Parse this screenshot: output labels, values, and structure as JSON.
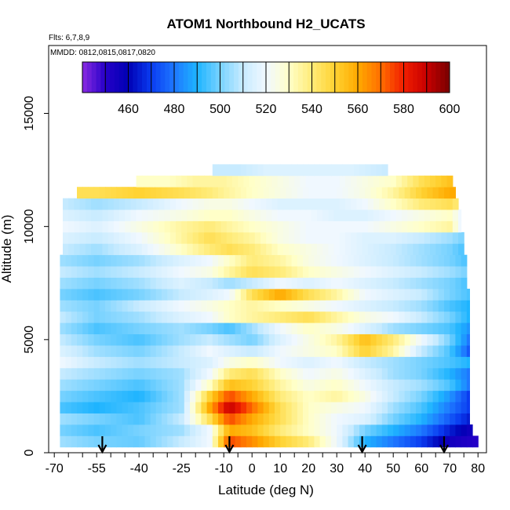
{
  "chart_data": {
    "type": "heatmap",
    "title": "ATOM1 Northbound H2_UCATS",
    "annotations": [
      "Flts: 6,7,8,9",
      "MMDD: 0812,0815,0817,0820"
    ],
    "xlabel": "Latitude (deg N)",
    "ylabel": "Altitude (m)",
    "xlim": [
      -72,
      83
    ],
    "ylim": [
      0,
      18000
    ],
    "x_ticks": [
      -70,
      -55,
      -40,
      -25,
      -10,
      0,
      10,
      20,
      30,
      40,
      50,
      60,
      70,
      80
    ],
    "y_ticks": [
      0,
      5000,
      10000,
      15000
    ],
    "colorbar": {
      "range": [
        440,
        600
      ],
      "ticks": [
        460,
        480,
        500,
        520,
        540,
        560,
        580,
        600
      ],
      "stops": [
        {
          "v": 440,
          "c": "#8a2be2"
        },
        {
          "v": 450,
          "c": "#2600c8"
        },
        {
          "v": 460,
          "c": "#0000b4"
        },
        {
          "v": 470,
          "c": "#0a3cf0"
        },
        {
          "v": 480,
          "c": "#1e78ff"
        },
        {
          "v": 490,
          "c": "#1eb4ff"
        },
        {
          "v": 500,
          "c": "#78d2ff"
        },
        {
          "v": 510,
          "c": "#c8ebff"
        },
        {
          "v": 520,
          "c": "#f0f8ff"
        },
        {
          "v": 530,
          "c": "#ffffc8"
        },
        {
          "v": 540,
          "c": "#ffeb78"
        },
        {
          "v": 550,
          "c": "#ffd232"
        },
        {
          "v": 560,
          "c": "#ffaa00"
        },
        {
          "v": 570,
          "c": "#ff6e00"
        },
        {
          "v": 580,
          "c": "#f01e00"
        },
        {
          "v": 590,
          "c": "#c80000"
        },
        {
          "v": 600,
          "c": "#780000"
        }
      ]
    },
    "profile_markers_lat": [
      -53,
      -8,
      39,
      68
    ],
    "bands": [
      {
        "alt": 500,
        "lat_min": -68,
        "lat_max": 80,
        "lats": [
          -68,
          -55,
          -40,
          -25,
          -15,
          -8,
          0,
          10,
          20,
          30,
          40,
          50,
          60,
          70,
          80
        ],
        "values": [
          505,
          500,
          498,
          510,
          520,
          575,
          565,
          550,
          540,
          520,
          490,
          480,
          470,
          455,
          450
        ]
      },
      {
        "alt": 1000,
        "lat_min": -68,
        "lat_max": 78,
        "lats": [
          -68,
          -55,
          -40,
          -25,
          -15,
          -8,
          0,
          10,
          20,
          30,
          40,
          50,
          60,
          70,
          78
        ],
        "values": [
          500,
          495,
          500,
          505,
          520,
          560,
          555,
          540,
          530,
          520,
          500,
          490,
          480,
          465,
          455
        ]
      },
      {
        "alt": 1500,
        "lat_min": -68,
        "lat_max": 77,
        "lats": [
          -68,
          -55,
          -40,
          -25,
          -15,
          -8,
          0,
          10,
          20,
          30,
          40,
          50,
          60,
          70,
          77
        ],
        "values": [
          505,
          500,
          495,
          510,
          545,
          575,
          560,
          545,
          530,
          520,
          515,
          500,
          490,
          475,
          465
        ]
      },
      {
        "alt": 2000,
        "lat_min": -68,
        "lat_max": 77,
        "lats": [
          -68,
          -55,
          -40,
          -25,
          -15,
          -8,
          0,
          10,
          20,
          30,
          40,
          50,
          60,
          70,
          77
        ],
        "values": [
          495,
          490,
          495,
          505,
          560,
          590,
          570,
          545,
          530,
          525,
          520,
          505,
          495,
          480,
          470
        ]
      },
      {
        "alt": 2500,
        "lat_min": -68,
        "lat_max": 77,
        "lats": [
          -68,
          -55,
          -40,
          -25,
          -15,
          -8,
          0,
          10,
          20,
          30,
          40,
          50,
          60,
          70,
          77
        ],
        "values": [
          500,
          495,
          490,
          505,
          550,
          575,
          560,
          540,
          530,
          535,
          525,
          510,
          500,
          485,
          470
        ]
      },
      {
        "alt": 3000,
        "lat_min": -68,
        "lat_max": 77,
        "lats": [
          -68,
          -55,
          -40,
          -25,
          -15,
          -8,
          0,
          10,
          20,
          30,
          40,
          50,
          60,
          70,
          77
        ],
        "values": [
          505,
          500,
          495,
          505,
          530,
          555,
          550,
          535,
          525,
          530,
          520,
          510,
          505,
          495,
          480
        ]
      },
      {
        "alt": 3500,
        "lat_min": -68,
        "lat_max": 77,
        "lats": [
          -68,
          -55,
          -40,
          -25,
          -15,
          -8,
          0,
          10,
          20,
          30,
          40,
          50,
          60,
          70,
          77
        ],
        "values": [
          510,
          505,
          500,
          505,
          520,
          540,
          545,
          530,
          520,
          525,
          515,
          505,
          500,
          490,
          480
        ]
      },
      {
        "alt": 4000,
        "lat_min": -68,
        "lat_max": 77,
        "lats": [
          -68,
          -55,
          -40,
          -25,
          -15,
          -8,
          0,
          10,
          20,
          30,
          40,
          50,
          60,
          70,
          77
        ],
        "values": [
          520,
          510,
          505,
          510,
          515,
          525,
          530,
          520,
          515,
          520,
          510,
          505,
          500,
          495,
          490
        ]
      },
      {
        "alt": 4500,
        "lat_min": -68,
        "lat_max": 77,
        "lats": [
          -68,
          -55,
          -40,
          -25,
          -15,
          -8,
          0,
          10,
          20,
          30,
          40,
          50,
          60,
          70,
          77
        ],
        "values": [
          515,
          505,
          500,
          510,
          520,
          515,
          510,
          520,
          525,
          530,
          550,
          535,
          510,
          495,
          475
        ]
      },
      {
        "alt": 5000,
        "lat_min": -68,
        "lat_max": 77,
        "lats": [
          -68,
          -55,
          -40,
          -25,
          -15,
          -8,
          0,
          10,
          20,
          30,
          40,
          50,
          60,
          70,
          77
        ],
        "values": [
          510,
          500,
          495,
          505,
          510,
          505,
          500,
          515,
          525,
          535,
          555,
          540,
          520,
          500,
          480
        ]
      },
      {
        "alt": 5500,
        "lat_min": -68,
        "lat_max": 77,
        "lats": [
          -68,
          -55,
          -40,
          -25,
          -15,
          -8,
          0,
          10,
          20,
          30,
          40,
          50,
          60,
          70,
          77
        ],
        "values": [
          505,
          495,
          500,
          505,
          500,
          495,
          505,
          520,
          530,
          525,
          515,
          505,
          500,
          495,
          485
        ]
      },
      {
        "alt": 6000,
        "lat_min": -68,
        "lat_max": 77,
        "lats": [
          -68,
          -55,
          -40,
          -25,
          -15,
          -8,
          0,
          10,
          20,
          30,
          40,
          50,
          60,
          70,
          77
        ],
        "values": [
          510,
          500,
          505,
          515,
          520,
          530,
          535,
          540,
          545,
          535,
          525,
          520,
          510,
          500,
          490
        ]
      },
      {
        "alt": 6500,
        "lat_min": -68,
        "lat_max": 77,
        "lats": [
          -68,
          -55,
          -40,
          -25,
          -15,
          -8,
          0,
          10,
          20,
          30,
          40,
          50,
          60,
          70,
          77
        ],
        "values": [
          505,
          500,
          510,
          520,
          525,
          530,
          535,
          530,
          525,
          520,
          515,
          510,
          505,
          495,
          490
        ]
      },
      {
        "alt": 7000,
        "lat_min": -68,
        "lat_max": 77,
        "lats": [
          -68,
          -55,
          -40,
          -25,
          -15,
          -8,
          0,
          10,
          20,
          30,
          40,
          50,
          60,
          70,
          77
        ],
        "values": [
          500,
          495,
          500,
          510,
          515,
          520,
          545,
          560,
          545,
          535,
          520,
          515,
          510,
          500,
          495
        ]
      },
      {
        "alt": 7500,
        "lat_min": -68,
        "lat_max": 76,
        "lats": [
          -68,
          -55,
          -40,
          -25,
          -15,
          -8,
          0,
          10,
          20,
          30,
          40,
          50,
          60,
          70,
          76
        ],
        "values": [
          505,
          500,
          505,
          515,
          510,
          505,
          510,
          520,
          515,
          520,
          515,
          510,
          505,
          500,
          495
        ]
      },
      {
        "alt": 8000,
        "lat_min": -68,
        "lat_max": 76,
        "lats": [
          -68,
          -55,
          -40,
          -25,
          -15,
          -8,
          0,
          10,
          20,
          30,
          40,
          50,
          60,
          70,
          76
        ],
        "values": [
          510,
          505,
          510,
          520,
          525,
          535,
          545,
          540,
          530,
          525,
          520,
          515,
          510,
          505,
          500
        ]
      },
      {
        "alt": 8500,
        "lat_min": -68,
        "lat_max": 76,
        "lats": [
          -68,
          -55,
          -40,
          -25,
          -15,
          -8,
          0,
          10,
          20,
          30,
          40,
          50,
          60,
          70,
          76
        ],
        "values": [
          505,
          500,
          505,
          515,
          520,
          530,
          540,
          535,
          525,
          520,
          515,
          510,
          505,
          500,
          495
        ]
      },
      {
        "alt": 9000,
        "lat_min": -67,
        "lat_max": 75,
        "lats": [
          -67,
          -55,
          -40,
          -25,
          -15,
          -8,
          0,
          10,
          20,
          30,
          40,
          50,
          60,
          70,
          75
        ],
        "values": [
          510,
          505,
          515,
          530,
          540,
          545,
          540,
          530,
          525,
          520,
          515,
          510,
          505,
          500,
          495
        ]
      },
      {
        "alt": 9500,
        "lat_min": -67,
        "lat_max": 75,
        "lats": [
          -67,
          -55,
          -40,
          -25,
          -15,
          -8,
          0,
          10,
          20,
          30,
          40,
          50,
          60,
          70,
          75
        ],
        "values": [
          515,
          510,
          520,
          535,
          545,
          540,
          535,
          525,
          520,
          520,
          515,
          515,
          510,
          505,
          500
        ]
      },
      {
        "alt": 10000,
        "lat_min": -67,
        "lat_max": 74,
        "lats": [
          -67,
          -55,
          -40,
          -25,
          -15,
          -8,
          0,
          10,
          20,
          30,
          40,
          50,
          60,
          70,
          74
        ],
        "values": [
          520,
          515,
          525,
          535,
          540,
          535,
          530,
          525,
          520,
          520,
          520,
          525,
          530,
          535,
          520
        ]
      },
      {
        "alt": 10500,
        "lat_min": -67,
        "lat_max": 74,
        "lats": [
          -67,
          -55,
          -40,
          -25,
          -15,
          -8,
          0,
          10,
          20,
          30,
          40,
          50,
          60,
          70,
          74
        ],
        "values": [
          515,
          510,
          520,
          525,
          530,
          530,
          525,
          520,
          520,
          515,
          515,
          520,
          525,
          530,
          520
        ]
      },
      {
        "alt": 11000,
        "lat_min": -67,
        "lat_max": 73,
        "lats": [
          -67,
          -55,
          -40,
          -25,
          -15,
          -8,
          0,
          10,
          20,
          30,
          40,
          50,
          60,
          70,
          73
        ],
        "values": [
          510,
          505,
          510,
          520,
          525,
          525,
          520,
          515,
          515,
          515,
          520,
          530,
          540,
          545,
          540
        ]
      },
      {
        "alt": 11500,
        "lat_min": -62,
        "lat_max": 72,
        "lats": [
          -62,
          -55,
          -40,
          -25,
          -15,
          -8,
          0,
          10,
          20,
          30,
          40,
          50,
          60,
          70,
          72
        ],
        "values": [
          545,
          545,
          550,
          545,
          540,
          535,
          530,
          525,
          520,
          520,
          525,
          535,
          550,
          560,
          560
        ]
      },
      {
        "alt": 12000,
        "lat_min": -41,
        "lat_max": 71,
        "lats": [
          -41,
          -30,
          -20,
          -10,
          0,
          10,
          20,
          30,
          40,
          50,
          60,
          71
        ],
        "values": [
          530,
          530,
          535,
          535,
          530,
          525,
          520,
          520,
          525,
          530,
          545,
          555
        ]
      },
      {
        "alt": 12500,
        "lat_min": -14,
        "lat_max": 48,
        "lats": [
          -14,
          -5,
          5,
          15,
          25,
          35,
          48
        ],
        "values": [
          510,
          510,
          515,
          515,
          515,
          515,
          510
        ]
      }
    ]
  }
}
